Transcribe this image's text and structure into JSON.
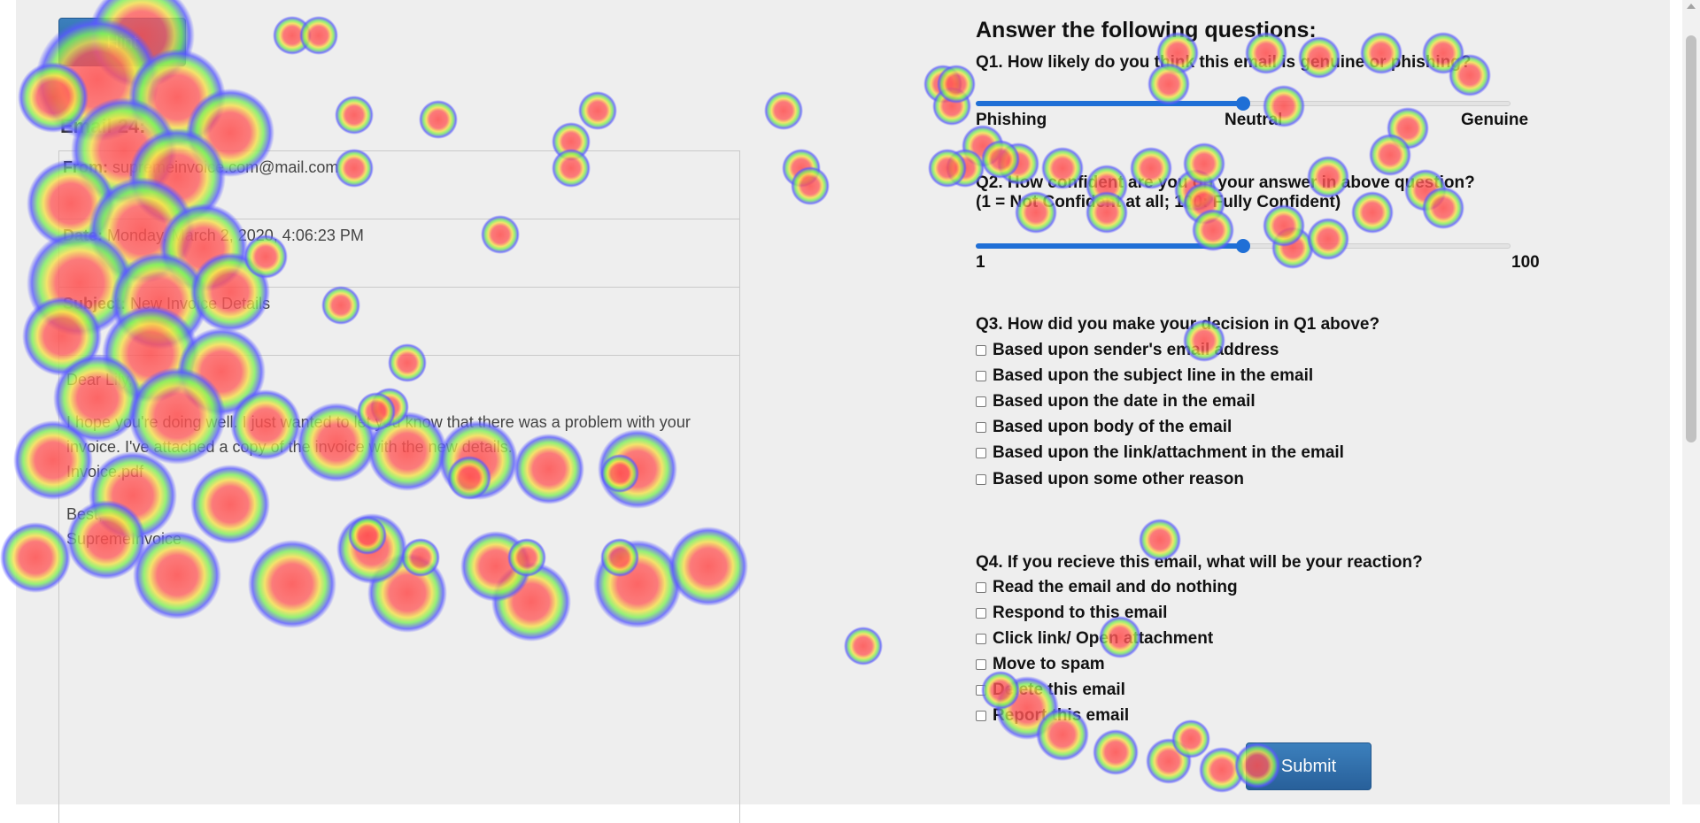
{
  "hint_button": {
    "label": "Hint"
  },
  "email": {
    "title": "Email 24:",
    "from_label": "From:",
    "from_value": "supremeinvoice.com@mail.com",
    "date_label": "Date:",
    "date_value": "Monday, March 2, 2020, 4:06:23 PM",
    "subject_label": "Subject:",
    "subject_value": "New Invoice Details",
    "greeting": "Dear Lily,",
    "body_line": "I hope you're doing well. I just wanted to let you know that there was a problem with your invoice. I've attached a copy of the invoice with the new details.",
    "attachment": "Invoice.pdf",
    "signoff": "Best,",
    "signature": "SupremeInvoice"
  },
  "questions": {
    "heading": "Answer the following questions:",
    "q1": {
      "text": "Q1. How likely do you think this email is genuine or phishing?",
      "left_label": "Phishing",
      "mid_label": "Neutral",
      "right_label": "Genuine",
      "value_fraction": 0.5
    },
    "q2": {
      "text_line1": "Q2. How confident are you on your answer in above question?",
      "text_line2": "(1 = Not Confident at all; 100: Fully Confident)",
      "min_label": "1",
      "max_label": "100",
      "value_fraction": 0.5
    },
    "q3": {
      "text": "Q3. How did you make your decision in Q1 above?",
      "options": [
        "Based upon sender's email address",
        "Based upon the subject line in the email",
        "Based upon the date in the email",
        "Based upon body of the email",
        "Based upon the link/attachment in the email",
        "Based upon some other reason"
      ]
    },
    "q4": {
      "text": "Q4. If you recieve this email, what will be your reaction?",
      "options": [
        "Read the email and do nothing",
        "Respond to this email",
        "Click link/ Open attachment",
        "Move to spam",
        "Delete this email",
        "Report this email"
      ]
    }
  },
  "submit_button": {
    "label": "Submit"
  },
  "colors": {
    "button_blue": "#2f6da9",
    "slider_blue": "#1f6fd6",
    "heat_core": "#ff5a5a",
    "heat_mid": "#8cf050",
    "heat_edge": "#5a5aff"
  }
}
